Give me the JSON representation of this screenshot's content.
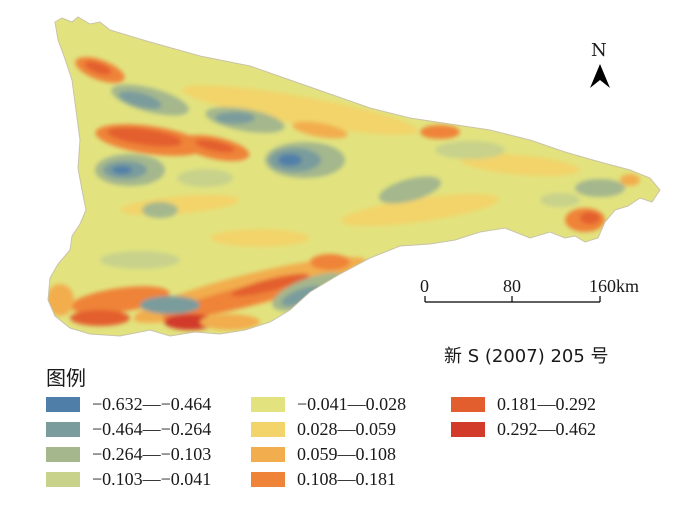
{
  "north_label": "N",
  "scale": {
    "ticks": [
      "0",
      "80",
      "160km"
    ]
  },
  "map_number": "新 S (2007) 205 号",
  "legend": {
    "title": "图例",
    "items": [
      {
        "label": "−0.632—−0.464",
        "color": "#4f7fa8"
      },
      {
        "label": "−0.464—−0.264",
        "color": "#7a9c9c"
      },
      {
        "label": "−0.264—−0.103",
        "color": "#a4b78d"
      },
      {
        "label": "−0.103—−0.041",
        "color": "#c8d28a"
      },
      {
        "label": "−0.041—0.028",
        "color": "#e2e37f"
      },
      {
        "label": "0.028—0.059",
        "color": "#f2d46a"
      },
      {
        "label": "0.059—0.108",
        "color": "#f2ad4e"
      },
      {
        "label": "0.108—0.181",
        "color": "#ef8338"
      },
      {
        "label": "0.181—0.292",
        "color": "#e35e2f"
      },
      {
        "label": "0.292—0.462",
        "color": "#d23a2a"
      }
    ]
  }
}
